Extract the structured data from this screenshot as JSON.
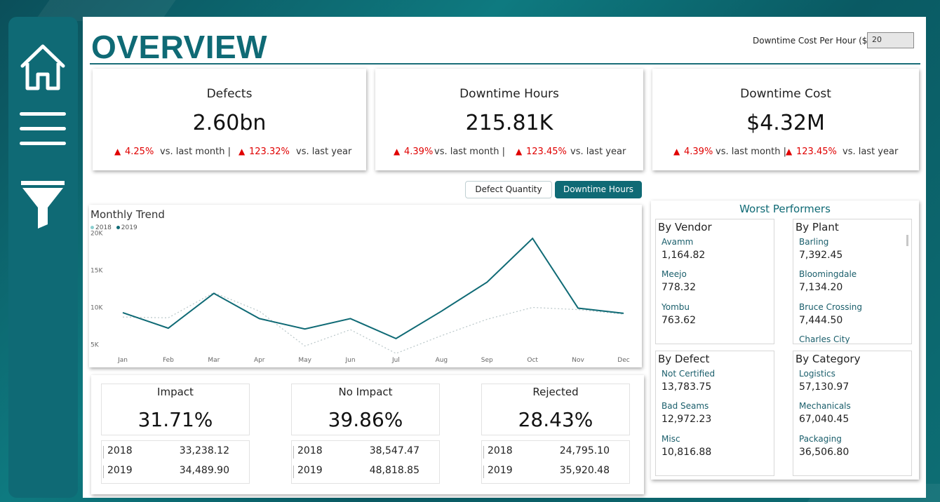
{
  "sidebar": {
    "icons": [
      "home-icon",
      "menu-icon",
      "filter-icon"
    ]
  },
  "header": {
    "title": "OVERVIEW",
    "downtime_cost_label": "Downtime Cost Per Hour ($):",
    "downtime_cost_value": "20"
  },
  "kpis": [
    {
      "title": "Defects",
      "value": "2.60bn",
      "month_change": "4.25%",
      "month_label": "vs. last month |",
      "year_change": "123.32%",
      "year_label": "vs. last year"
    },
    {
      "title": "Downtime Hours",
      "value": "215.81K",
      "month_change": "4.39%",
      "month_label": "vs. last month |",
      "year_change": "123.45%",
      "year_label": "vs. last year"
    },
    {
      "title": "Downtime Cost",
      "value": "$4.32M",
      "month_change": "4.39%",
      "month_label": "vs. last month |",
      "year_change": "123.45%",
      "year_label": "vs. last year"
    }
  ],
  "toggle": {
    "option_a": "Defect Quantity",
    "option_b": "Downtime Hours",
    "selected": "Downtime Hours"
  },
  "colors": {
    "accent": "#0f6a75",
    "up_red": "#e00000",
    "series_2018": "#8ccfd0",
    "series_2019": "#0f6a75"
  },
  "chart_data": {
    "type": "line",
    "title": "Monthly Trend",
    "x": [
      "Jan",
      "Feb",
      "Mar",
      "Apr",
      "May",
      "Jun",
      "Jul",
      "Aug",
      "Sep",
      "Oct",
      "Nov",
      "Dec"
    ],
    "ylim": [
      4000,
      21000
    ],
    "yticks": [
      5000,
      10000,
      15000,
      20000
    ],
    "ytick_labels": [
      "5K",
      "10K",
      "15K",
      "20K"
    ],
    "grid": false,
    "legend_position": "top-left",
    "series": [
      {
        "name": "2018",
        "style": "dotted",
        "values": [
          8700,
          8600,
          12000,
          9500,
          4800,
          7000,
          3800,
          6200,
          8400,
          10000,
          9700,
          9100
        ]
      },
      {
        "name": "2019",
        "style": "solid",
        "values": [
          9300,
          7200,
          11900,
          8500,
          7100,
          8500,
          5800,
          9500,
          13400,
          19300,
          9900,
          9200
        ]
      }
    ]
  },
  "impact": [
    {
      "title": "Impact",
      "value": "31.71%",
      "rows": [
        {
          "year": "2018",
          "value": "33,238.12"
        },
        {
          "year": "2019",
          "value": "34,489.90"
        }
      ]
    },
    {
      "title": "No Impact",
      "value": "39.86%",
      "rows": [
        {
          "year": "2018",
          "value": "38,547.47"
        },
        {
          "year": "2019",
          "value": "48,818.85"
        }
      ]
    },
    {
      "title": "Rejected",
      "value": "28.43%",
      "rows": [
        {
          "year": "2018",
          "value": "24,795.10"
        },
        {
          "year": "2019",
          "value": "35,920.48"
        }
      ]
    }
  ],
  "worst": {
    "title": "Worst Performers",
    "by_vendor": {
      "heading": "By Vendor",
      "items": [
        {
          "name": "Avamm",
          "value": "1,164.82"
        },
        {
          "name": "Meejo",
          "value": "778.32"
        },
        {
          "name": "Yombu",
          "value": "763.62"
        }
      ]
    },
    "by_plant": {
      "heading": "By Plant",
      "items": [
        {
          "name": "Barling",
          "value": "7,392.45"
        },
        {
          "name": "Bloomingdale",
          "value": "7,134.20"
        },
        {
          "name": "Bruce Crossing",
          "value": "7,444.50"
        },
        {
          "name": "Charles City",
          "value": ""
        }
      ]
    },
    "by_defect": {
      "heading": "By Defect",
      "items": [
        {
          "name": "Not Certified",
          "value": "13,783.75"
        },
        {
          "name": "Bad Seams",
          "value": "12,972.23"
        },
        {
          "name": "Misc",
          "value": "10,816.88"
        }
      ]
    },
    "by_category": {
      "heading": "By Category",
      "items": [
        {
          "name": "Logistics",
          "value": "57,130.97"
        },
        {
          "name": "Mechanicals",
          "value": "67,040.45"
        },
        {
          "name": "Packaging",
          "value": "36,506.80"
        }
      ]
    }
  }
}
